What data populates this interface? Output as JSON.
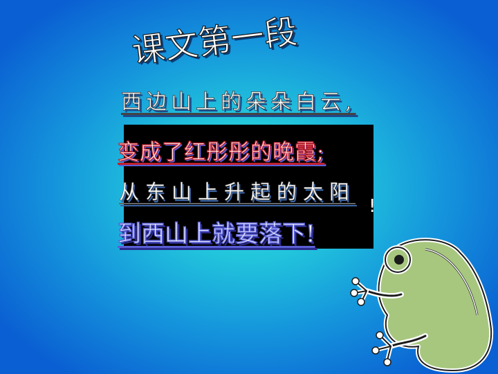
{
  "slide": {
    "title": "课文第一段",
    "lines": [
      "西边山上的朵朵白云,",
      "变成了红彤彤的晚霞;",
      "从东山上升起的太阳",
      "到西山上就要落下!"
    ],
    "stray_mark": "!"
  },
  "colors": {
    "background_center": "#3fe0d0",
    "background_edge": "#0a5fd2",
    "box": "#000000",
    "frog_body": "#a7c77f",
    "frog_outline": "#ffffff"
  },
  "icons": [
    "frog-illustration"
  ]
}
